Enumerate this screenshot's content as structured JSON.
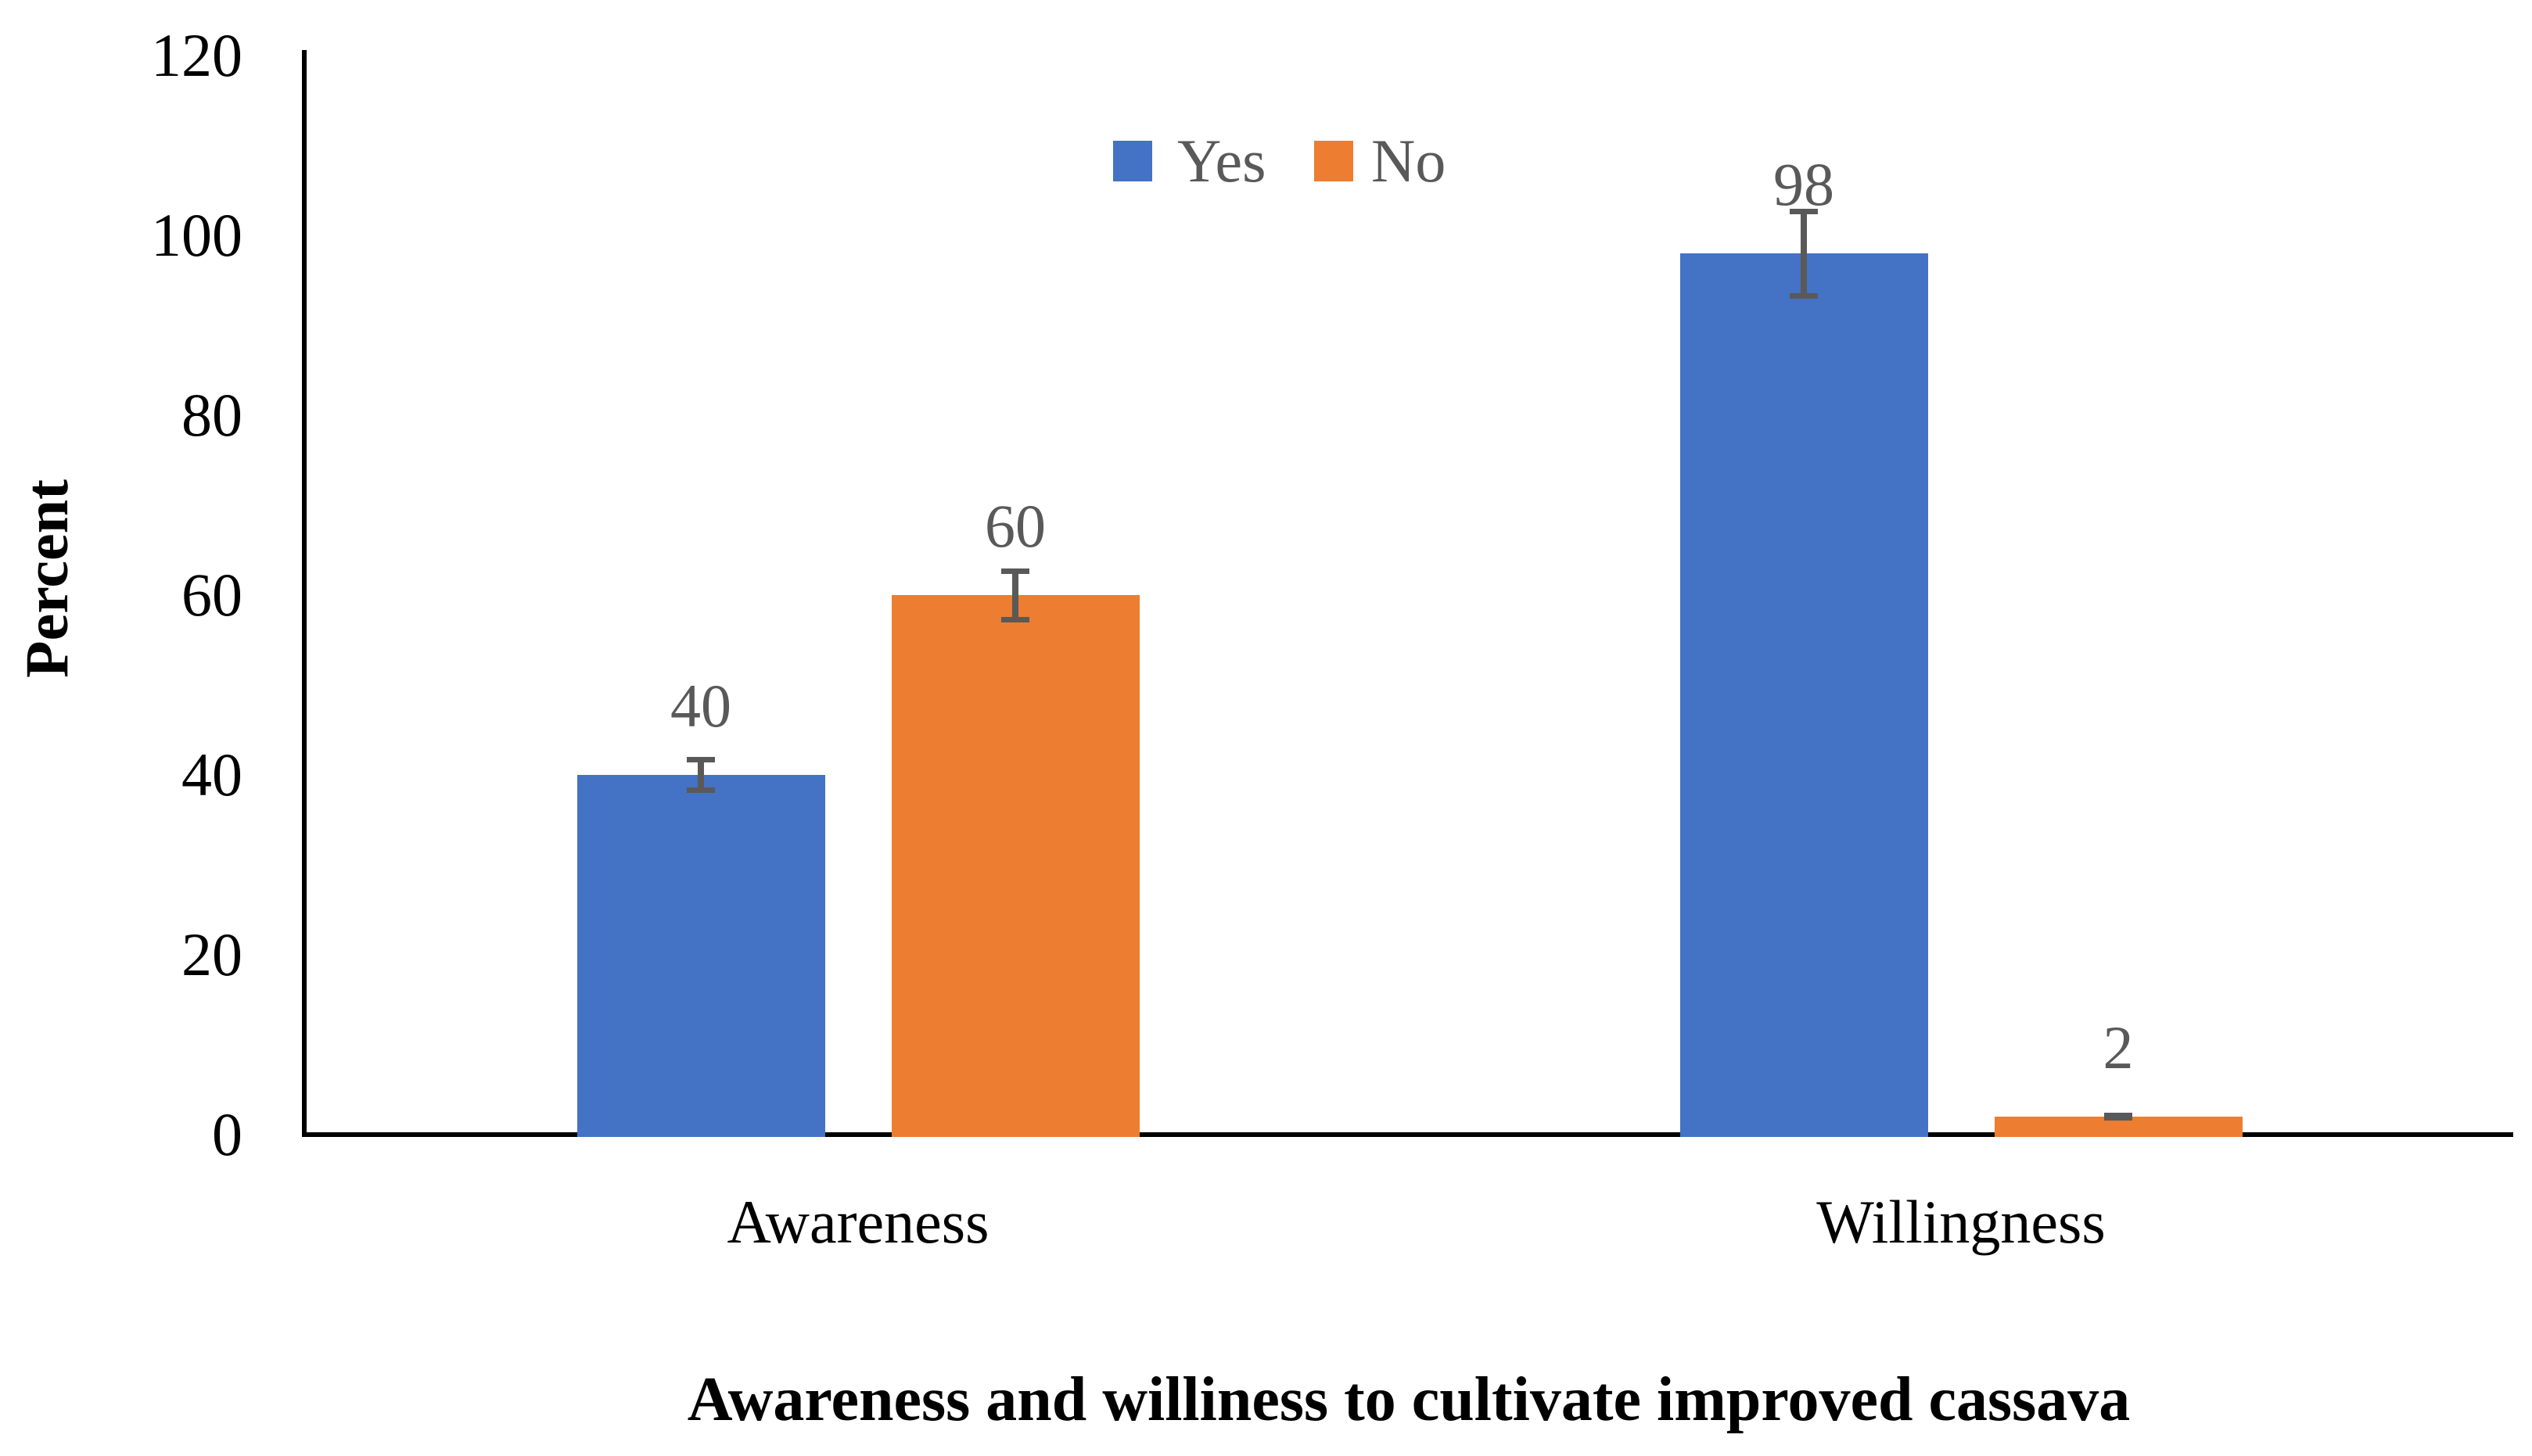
{
  "chart_data": {
    "type": "bar",
    "title": "Awareness and williness to cultivate improved cassava",
    "xlabel": "Awareness and williness to cultivate improved cassava",
    "ylabel": "Percent",
    "categories": [
      "Awareness",
      "Willingness"
    ],
    "series": [
      {
        "name": "Yes",
        "color": "#4472C4",
        "values": [
          40,
          98
        ],
        "errors": [
          2,
          5
        ]
      },
      {
        "name": "No",
        "color": "#ED7D31",
        "values": [
          60,
          2
        ],
        "errors": [
          3,
          0.4
        ]
      }
    ],
    "data_labels": {
      "Yes": [
        "40",
        "98"
      ],
      "No": [
        "60",
        "2"
      ]
    },
    "ylim": [
      0,
      120
    ],
    "yticks": [
      "0",
      "20",
      "40",
      "60",
      "80",
      "100",
      "120"
    ],
    "grid": false,
    "legend_position": "top-center",
    "legend_labels": [
      "Yes",
      "No"
    ],
    "colors": {
      "yes_bar": "#4472C4",
      "no_bar": "#ED7D31",
      "error_bar": "#595959",
      "data_label_text": "#595959",
      "legend_text": "#595959",
      "axis_line": "#000000",
      "tick_text": "#000000",
      "background": "#ffffff"
    }
  }
}
